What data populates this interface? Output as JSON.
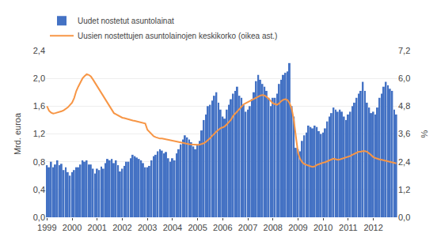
{
  "chart_data": {
    "type": "bar",
    "ylabel": "Mrd. euroa",
    "y2label": "%",
    "categories": [
      "1999",
      null,
      null,
      null,
      null,
      null,
      null,
      null,
      null,
      null,
      null,
      null,
      "2000",
      null,
      null,
      null,
      null,
      null,
      null,
      null,
      null,
      null,
      null,
      null,
      "2001",
      null,
      null,
      null,
      null,
      null,
      null,
      null,
      null,
      null,
      null,
      null,
      "2002",
      null,
      null,
      null,
      null,
      null,
      null,
      null,
      null,
      null,
      null,
      null,
      "2003",
      null,
      null,
      null,
      null,
      null,
      null,
      null,
      null,
      null,
      null,
      null,
      "2004",
      null,
      null,
      null,
      null,
      null,
      null,
      null,
      null,
      null,
      null,
      null,
      "2005",
      null,
      null,
      null,
      null,
      null,
      null,
      null,
      null,
      null,
      null,
      null,
      "2006",
      null,
      null,
      null,
      null,
      null,
      null,
      null,
      null,
      null,
      null,
      null,
      "2007",
      null,
      null,
      null,
      null,
      null,
      null,
      null,
      null,
      null,
      null,
      null,
      "2008",
      null,
      null,
      null,
      null,
      null,
      null,
      null,
      null,
      null,
      null,
      null,
      "2009",
      null,
      null,
      null,
      null,
      null,
      null,
      null,
      null,
      null,
      null,
      null,
      "2010",
      null,
      null,
      null,
      null,
      null,
      null,
      null,
      null,
      null,
      null,
      null,
      "2011",
      null,
      null,
      null,
      null,
      null,
      null,
      null,
      null,
      null,
      null,
      null,
      "2012",
      null,
      null,
      null,
      null,
      null,
      null,
      null,
      null,
      null,
      null,
      null
    ],
    "series": [
      {
        "name": "Uudet nostetut asuntolainat",
        "type": "bar",
        "color": "#4472c4",
        "values": [
          0.75,
          0.72,
          0.8,
          0.72,
          0.76,
          0.82,
          0.75,
          0.77,
          0.68,
          0.72,
          0.65,
          0.6,
          0.65,
          0.68,
          0.72,
          0.72,
          0.76,
          0.82,
          0.8,
          0.82,
          0.76,
          0.76,
          0.7,
          0.63,
          0.7,
          0.68,
          0.73,
          0.7,
          0.78,
          0.84,
          0.82,
          0.84,
          0.78,
          0.82,
          0.75,
          0.66,
          0.7,
          0.74,
          0.8,
          0.8,
          0.85,
          0.9,
          0.88,
          0.86,
          0.84,
          0.82,
          0.78,
          0.72,
          0.72,
          0.74,
          0.82,
          0.88,
          0.9,
          0.95,
          0.98,
          0.96,
          0.92,
          0.94,
          0.85,
          0.8,
          0.85,
          0.82,
          0.92,
          0.98,
          1.05,
          1.12,
          1.18,
          1.15,
          1.12,
          1.08,
          1.02,
          0.98,
          1.05,
          1.1,
          1.25,
          1.4,
          1.48,
          1.6,
          1.62,
          1.68,
          1.75,
          1.8,
          1.65,
          1.55,
          1.45,
          1.42,
          1.55,
          1.62,
          1.7,
          1.78,
          1.82,
          1.88,
          1.75,
          1.72,
          1.62,
          1.52,
          1.55,
          1.6,
          1.7,
          1.8,
          1.96,
          2.05,
          1.98,
          1.92,
          1.88,
          1.82,
          1.72,
          1.6,
          1.72,
          1.72,
          1.78,
          1.92,
          1.98,
          2.05,
          2.08,
          2.1,
          2.22,
          1.6,
          1.45,
          1.0,
          0.98,
          0.95,
          1.1,
          1.18,
          1.22,
          1.32,
          1.3,
          1.28,
          1.32,
          1.3,
          1.24,
          1.2,
          1.22,
          1.28,
          1.38,
          1.45,
          1.5,
          1.58,
          1.55,
          1.52,
          1.55,
          1.52,
          1.45,
          1.4,
          1.48,
          1.52,
          1.6,
          1.65,
          1.72,
          1.78,
          1.82,
          1.95,
          1.82,
          1.65,
          1.58,
          1.5,
          1.52,
          1.48,
          1.58,
          1.72,
          1.78,
          1.88,
          1.95,
          1.9,
          1.85,
          1.82,
          1.55,
          1.48
        ]
      },
      {
        "name": "Uusien nostettujen asuntolainojen keskikorko (oikea ast.)",
        "type": "line",
        "color": "#f79646",
        "axis": "y2",
        "values": [
          4.8,
          4.6,
          4.52,
          4.48,
          4.5,
          4.52,
          4.55,
          4.58,
          4.62,
          4.68,
          4.75,
          4.85,
          4.95,
          5.15,
          5.45,
          5.65,
          5.85,
          6.0,
          6.1,
          6.18,
          6.15,
          6.08,
          5.95,
          5.8,
          5.65,
          5.5,
          5.35,
          5.2,
          5.05,
          4.9,
          4.75,
          4.6,
          4.5,
          4.45,
          4.4,
          4.35,
          4.3,
          4.28,
          4.25,
          4.22,
          4.2,
          4.18,
          4.16,
          4.14,
          4.12,
          4.1,
          4.08,
          4.05,
          3.78,
          3.68,
          3.58,
          3.5,
          3.46,
          3.42,
          3.4,
          3.4,
          3.38,
          3.36,
          3.34,
          3.33,
          3.3,
          3.28,
          3.26,
          3.24,
          3.22,
          3.22,
          3.2,
          3.18,
          3.16,
          3.15,
          3.14,
          3.13,
          3.13,
          3.14,
          3.16,
          3.2,
          3.26,
          3.33,
          3.42,
          3.52,
          3.62,
          3.7,
          3.78,
          3.85,
          3.88,
          3.93,
          4.02,
          4.12,
          4.22,
          4.38,
          4.48,
          4.58,
          4.7,
          4.8,
          4.88,
          4.93,
          4.98,
          5.02,
          5.08,
          5.12,
          5.18,
          5.22,
          5.26,
          5.28,
          5.26,
          5.2,
          5.12,
          5.02,
          4.92,
          4.88,
          4.86,
          4.92,
          5.02,
          5.08,
          5.1,
          5.06,
          4.92,
          4.68,
          4.18,
          3.48,
          2.78,
          2.52,
          2.38,
          2.3,
          2.26,
          2.24,
          2.2,
          2.18,
          2.2,
          2.26,
          2.3,
          2.33,
          2.36,
          2.38,
          2.42,
          2.48,
          2.5,
          2.53,
          2.5,
          2.48,
          2.5,
          2.53,
          2.56,
          2.58,
          2.62,
          2.65,
          2.7,
          2.75,
          2.8,
          2.83,
          2.83,
          2.86,
          2.86,
          2.83,
          2.76,
          2.68,
          2.6,
          2.56,
          2.52,
          2.5,
          2.48,
          2.46,
          2.44,
          2.42,
          2.4,
          2.38,
          2.36,
          2.33
        ]
      }
    ],
    "ylim": [
      0.0,
      2.4
    ],
    "yticks": [
      {
        "value": 0.0,
        "label": "0,0"
      },
      {
        "value": 0.4,
        "label": "0,4"
      },
      {
        "value": 0.8,
        "label": "0,8"
      },
      {
        "value": 1.2,
        "label": "1,2"
      },
      {
        "value": 1.6,
        "label": "1,6"
      },
      {
        "value": 2.0,
        "label": "2,0"
      },
      {
        "value": 2.4,
        "label": "2,4"
      }
    ],
    "y2lim": [
      0.0,
      7.2
    ],
    "y2ticks": [
      {
        "value": 0.0,
        "label": "0,0"
      },
      {
        "value": 1.2,
        "label": "1,2"
      },
      {
        "value": 2.4,
        "label": "2,4"
      },
      {
        "value": 3.6,
        "label": "3,6"
      },
      {
        "value": 4.8,
        "label": "4,8"
      },
      {
        "value": 6.0,
        "label": "6,0"
      },
      {
        "value": 7.2,
        "label": "7,2"
      }
    ],
    "grid": true,
    "legend": "top left"
  }
}
